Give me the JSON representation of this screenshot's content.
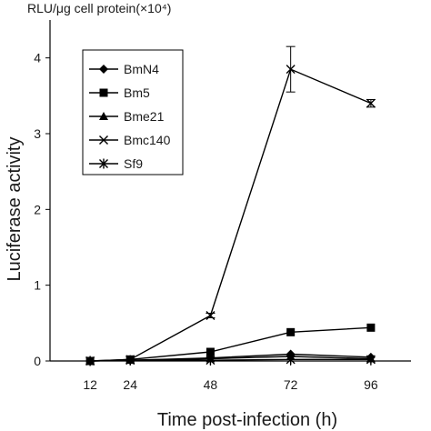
{
  "chart_data": {
    "type": "line",
    "unit_label": "RLU/μg cell protein(×10⁴)",
    "xlabel": "Time post-infection (h)",
    "ylabel": "Luciferase activity",
    "x": [
      12,
      24,
      48,
      72,
      96
    ],
    "xlim": [
      0,
      108
    ],
    "ylim": [
      0,
      4.5
    ],
    "yticks": [
      0,
      1,
      2,
      3,
      4
    ],
    "grid": false,
    "legend_position": "top-left",
    "series": [
      {
        "name": "BmN4",
        "marker": "diamond",
        "values": [
          0,
          0.01,
          0.04,
          0.09,
          0.05
        ]
      },
      {
        "name": "Bm5",
        "marker": "square",
        "values": [
          0,
          0.02,
          0.12,
          0.38,
          0.44
        ]
      },
      {
        "name": "Bme21",
        "marker": "triangle",
        "values": [
          0,
          0.01,
          0.03,
          0.06,
          0.03
        ]
      },
      {
        "name": "Bmc140",
        "marker": "x",
        "values": [
          0,
          0.02,
          0.6,
          3.85,
          3.4
        ],
        "error": [
          0,
          0,
          0.03,
          0.3,
          0.05
        ]
      },
      {
        "name": "Sf9",
        "marker": "asterisk",
        "values": [
          0,
          0.01,
          0.01,
          0.02,
          0.02
        ]
      }
    ]
  }
}
